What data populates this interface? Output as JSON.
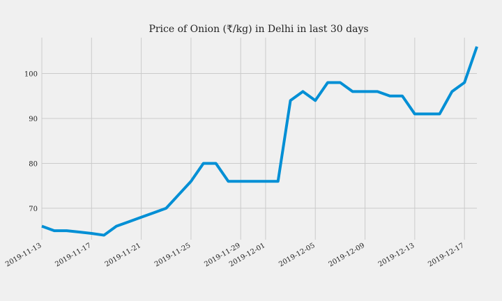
{
  "chart_data": {
    "type": "line",
    "title": "Price of Onion (₹/kg) in Delhi in last 30 days",
    "xlabel": "",
    "ylabel": "",
    "x_type": "date",
    "xlim": [
      "2019-11-13",
      "2019-12-18"
    ],
    "ylim": [
      63,
      108
    ],
    "x_ticks": [
      "2019-11-13",
      "2019-11-17",
      "2019-11-21",
      "2019-11-25",
      "2019-11-29",
      "2019-12-01",
      "2019-12-05",
      "2019-12-09",
      "2019-12-13",
      "2019-12-17"
    ],
    "y_ticks": [
      70,
      80,
      90,
      100
    ],
    "grid": true,
    "legend": "none",
    "colors": {
      "line": "#008fd5",
      "background": "#f0f0f0",
      "grid": "#cbcbcb"
    },
    "series": [
      {
        "color": "#008fd5",
        "points": [
          [
            "2019-11-13",
            66
          ],
          [
            "2019-11-14",
            65
          ],
          [
            "2019-11-15",
            65
          ],
          [
            "2019-11-16",
            64.7
          ],
          [
            "2019-11-17",
            64.4
          ],
          [
            "2019-11-18",
            64
          ],
          [
            "2019-11-19",
            66
          ],
          [
            "2019-11-20",
            67
          ],
          [
            "2019-11-21",
            68
          ],
          [
            "2019-11-22",
            69
          ],
          [
            "2019-11-23",
            70
          ],
          [
            "2019-11-24",
            73
          ],
          [
            "2019-11-25",
            76
          ],
          [
            "2019-11-26",
            80
          ],
          [
            "2019-11-27",
            80
          ],
          [
            "2019-11-28",
            76
          ],
          [
            "2019-11-29",
            76
          ],
          [
            "2019-11-30",
            76
          ],
          [
            "2019-12-01",
            76
          ],
          [
            "2019-12-02",
            76
          ],
          [
            "2019-12-03",
            94
          ],
          [
            "2019-12-04",
            96
          ],
          [
            "2019-12-05",
            94
          ],
          [
            "2019-12-06",
            98
          ],
          [
            "2019-12-07",
            98
          ],
          [
            "2019-12-08",
            96
          ],
          [
            "2019-12-09",
            96
          ],
          [
            "2019-12-10",
            96
          ],
          [
            "2019-12-11",
            95
          ],
          [
            "2019-12-12",
            95
          ],
          [
            "2019-12-13",
            91
          ],
          [
            "2019-12-14",
            91
          ],
          [
            "2019-12-15",
            91
          ],
          [
            "2019-12-16",
            96
          ],
          [
            "2019-12-17",
            98
          ],
          [
            "2019-12-18",
            106
          ]
        ]
      }
    ]
  }
}
